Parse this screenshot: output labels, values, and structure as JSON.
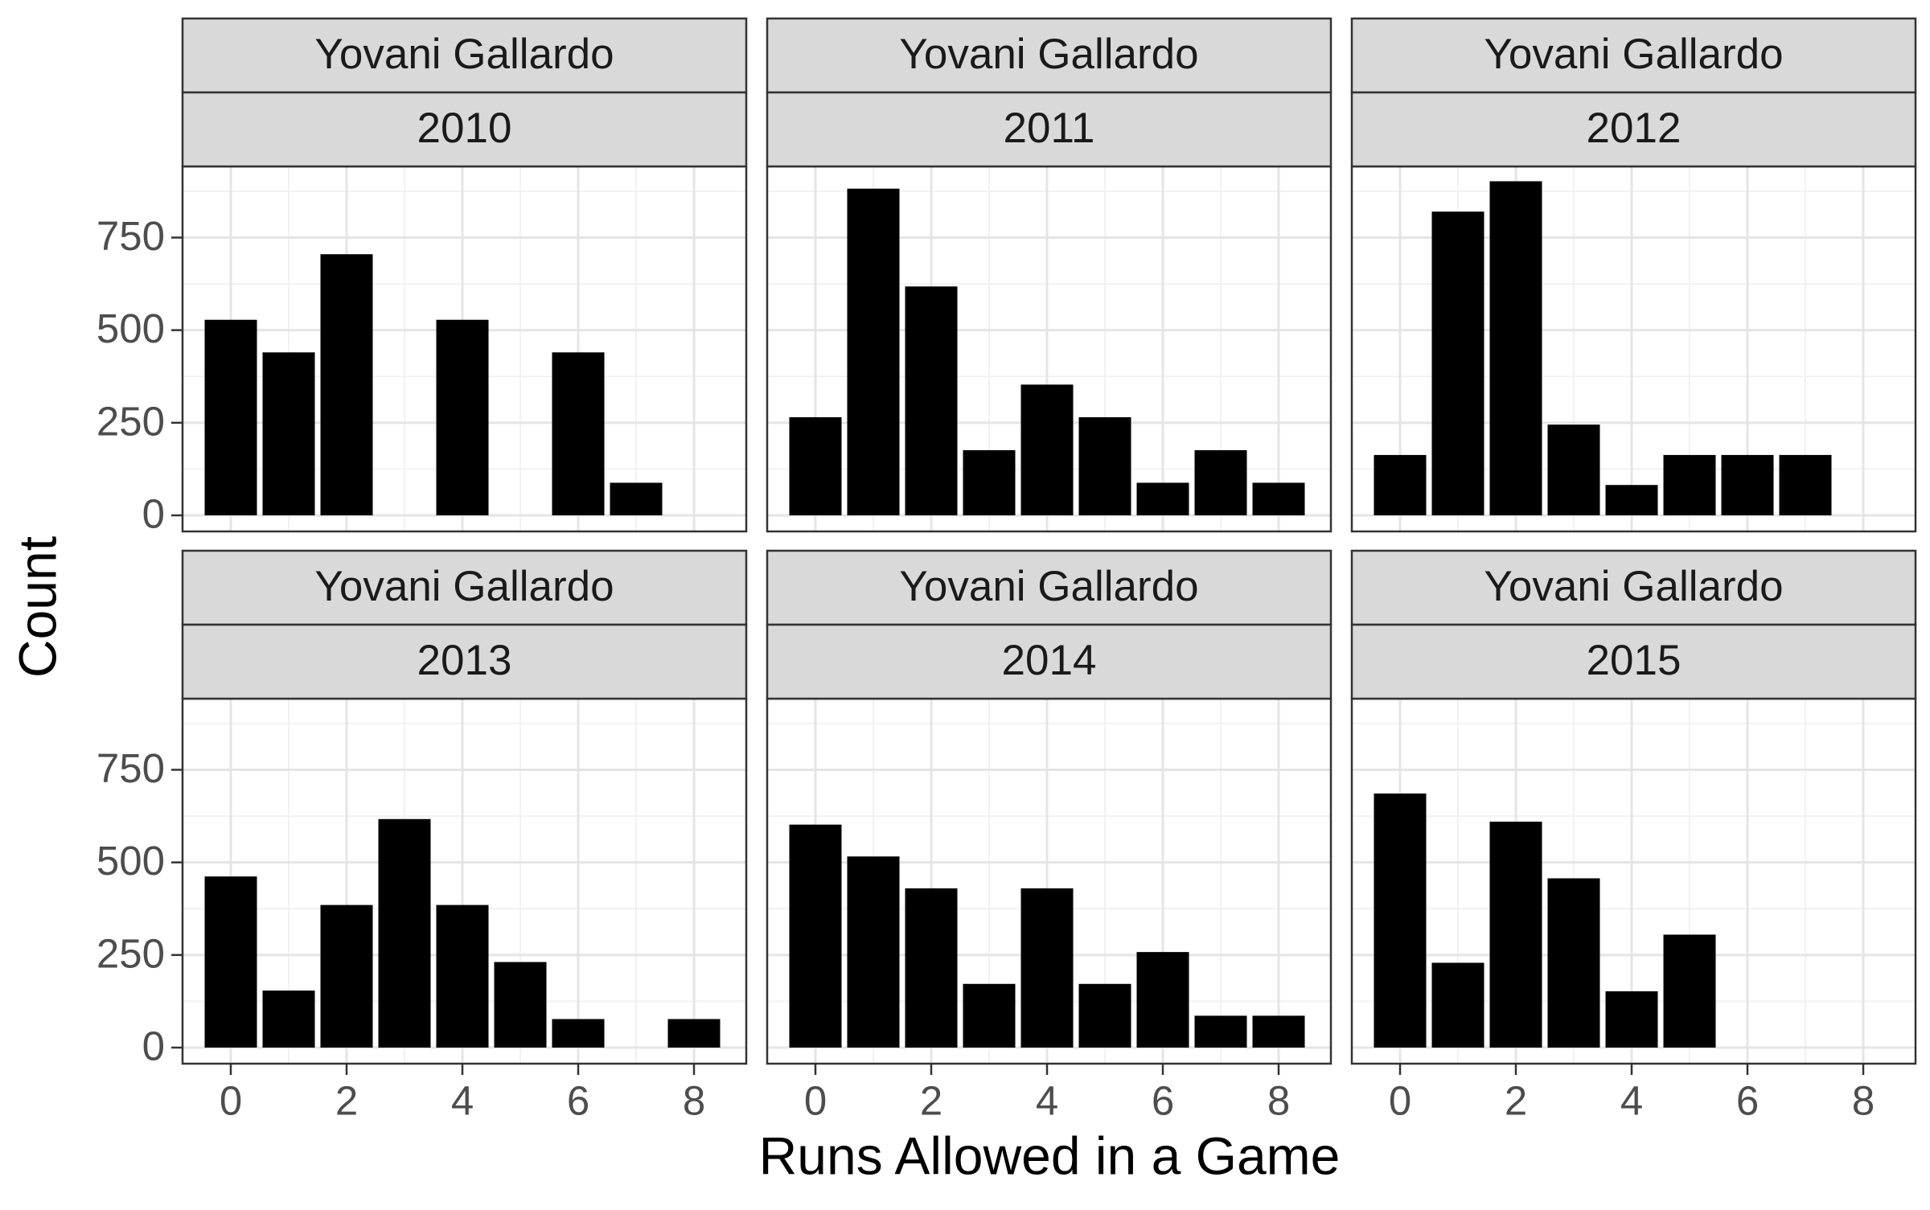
{
  "chart_data": {
    "type": "bar",
    "xlabel": "Runs Allowed in a Game",
    "ylabel": "Count",
    "x_ticks": [
      0,
      2,
      4,
      6,
      8
    ],
    "y_ticks": [
      0,
      250,
      500,
      750
    ],
    "xlim": [
      -0.5,
      8.5
    ],
    "ylim": [
      0,
      900
    ],
    "grid": true,
    "facet_layout": "2 rows x 3 columns",
    "panels": [
      {
        "player": "Yovani Gallardo",
        "year": "2010",
        "x": [
          0,
          1,
          2,
          4,
          6,
          7
        ],
        "values": [
          528,
          440,
          705,
          528,
          440,
          88
        ]
      },
      {
        "player": "Yovani Gallardo",
        "year": "2011",
        "x": [
          0,
          1,
          2,
          3,
          4,
          5,
          6,
          7,
          8
        ],
        "values": [
          265,
          882,
          618,
          176,
          353,
          265,
          88,
          176,
          88
        ]
      },
      {
        "player": "Yovani Gallardo",
        "year": "2012",
        "x": [
          0,
          1,
          2,
          3,
          4,
          5,
          6,
          7
        ],
        "values": [
          163,
          820,
          902,
          245,
          82,
          163,
          163,
          163
        ]
      },
      {
        "player": "Yovani Gallardo",
        "year": "2013",
        "x": [
          0,
          1,
          2,
          3,
          4,
          5,
          6,
          8
        ],
        "values": [
          462,
          154,
          385,
          617,
          385,
          231,
          77,
          77
        ]
      },
      {
        "player": "Yovani Gallardo",
        "year": "2014",
        "x": [
          0,
          1,
          2,
          3,
          4,
          5,
          6,
          7,
          8
        ],
        "values": [
          602,
          516,
          430,
          172,
          430,
          172,
          258,
          86,
          86
        ]
      },
      {
        "player": "Yovani Gallardo",
        "year": "2015",
        "x": [
          0,
          1,
          2,
          3,
          4,
          5
        ],
        "values": [
          686,
          229,
          610,
          457,
          152,
          305
        ]
      }
    ]
  }
}
